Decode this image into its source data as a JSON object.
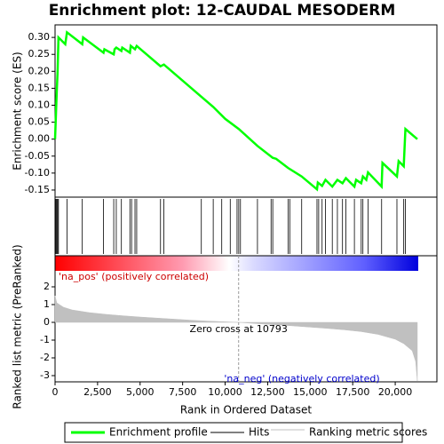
{
  "chart_data": [
    {
      "type": "line",
      "title": "Enrichment plot: 12-CAUDAL MESODERM",
      "ylabel": "Enrichment score (ES)",
      "xlim": [
        0,
        22450
      ],
      "ylim": [
        -0.171,
        0.337
      ],
      "yticks": [
        -0.15,
        {
          "value": -0.1,
          "label": "-0.10"
        },
        -0.05,
        {
          "value": 0,
          "label": "0.00"
        },
        0.05,
        {
          "value": 0.1,
          "label": "0.10"
        },
        0.15,
        {
          "value": 0.2,
          "label": "0.20"
        },
        0.25,
        {
          "value": 0.3,
          "label": "0.30"
        }
      ],
      "series": [
        {
          "name": "Enrichment profile",
          "color": "#00ff00",
          "x": [
            0,
            50,
            100,
            150,
            200,
            600,
            700,
            1600,
            1650,
            2850,
            2900,
            3450,
            3500,
            3600,
            3900,
            3950,
            4400,
            4450,
            4700,
            4800,
            6200,
            6400,
            8600,
            9300,
            10000,
            10800,
            11900,
            12800,
            13000,
            13700,
            14500,
            15400,
            15450,
            15700,
            15900,
            16300,
            16600,
            16900,
            17100,
            17600,
            17700,
            18000,
            18100,
            18300,
            18400,
            19200,
            19250,
            20100,
            20200,
            20500,
            20550,
            20600,
            21300
          ],
          "values": [
            0,
            0.07,
            0.14,
            0.2,
            0.3,
            0.28,
            0.315,
            0.28,
            0.3,
            0.255,
            0.265,
            0.25,
            0.265,
            0.27,
            0.26,
            0.27,
            0.255,
            0.275,
            0.265,
            0.275,
            0.215,
            0.22,
            0.125,
            0.095,
            0.06,
            0.03,
            -0.02,
            -0.055,
            -0.058,
            -0.085,
            -0.11,
            -0.148,
            -0.128,
            -0.138,
            -0.12,
            -0.14,
            -0.12,
            -0.13,
            -0.115,
            -0.14,
            -0.12,
            -0.13,
            -0.11,
            -0.12,
            -0.098,
            -0.14,
            -0.07,
            -0.11,
            -0.065,
            -0.08,
            -0.025,
            0.03,
            0
          ]
        }
      ]
    },
    {
      "type": "hits",
      "series": [
        {
          "name": "Hits",
          "color": "#000000",
          "x": [
            50,
            100,
            150,
            200,
            700,
            1600,
            2850,
            3450,
            3600,
            3900,
            4400,
            4500,
            4700,
            4800,
            6200,
            6400,
            8600,
            9300,
            9800,
            10300,
            10700,
            10800,
            10900,
            11900,
            12700,
            12800,
            13700,
            13800,
            14500,
            15400,
            15500,
            15700,
            15900,
            16300,
            16600,
            16900,
            17100,
            17600,
            18000,
            18100,
            18400,
            19200,
            20100,
            20500,
            20600
          ]
        }
      ]
    },
    {
      "type": "area",
      "xlabel": "Rank in Ordered Dataset",
      "ylabel": "Ranked list metric (PreRanked)",
      "xlim": [
        0,
        22450
      ],
      "ylim": [
        -3.35,
        2.9
      ],
      "xticks": [
        0,
        {
          "value": 2500,
          "label": "2,500"
        },
        {
          "value": 5000,
          "label": "5,000"
        },
        {
          "value": 7500,
          "label": "7,500"
        },
        {
          "value": 10000,
          "label": "10,000"
        },
        {
          "value": 12500,
          "label": "12,500"
        },
        {
          "value": 15000,
          "label": "15,000"
        },
        {
          "value": 17500,
          "label": "17,500"
        },
        {
          "value": 20000,
          "label": "20,000"
        }
      ],
      "yticks": [
        -3,
        -2,
        -1,
        0,
        1,
        2
      ],
      "zero_cross": 10793,
      "annotations": [
        "'na_pos' (positively correlated)",
        "Zero cross at 10793",
        "'na_neg' (negatively correlated)"
      ],
      "series": [
        {
          "name": "Ranking metric scores",
          "color": "#c0c0c0",
          "x": [
            0,
            100,
            500,
            1000,
            2000,
            3000,
            4000,
            5000,
            6000,
            7000,
            8000,
            9000,
            10000,
            10793,
            12000,
            13000,
            14000,
            15000,
            16000,
            17000,
            18000,
            19000,
            20000,
            20500,
            21000,
            21200,
            21300
          ],
          "values": [
            1.5,
            1.1,
            0.85,
            0.7,
            0.55,
            0.45,
            0.37,
            0.3,
            0.24,
            0.18,
            0.12,
            0.07,
            0.03,
            0,
            -0.08,
            -0.14,
            -0.2,
            -0.27,
            -0.34,
            -0.42,
            -0.52,
            -0.68,
            -0.95,
            -1.2,
            -1.6,
            -2.2,
            -3.3
          ]
        }
      ]
    }
  ]
}
